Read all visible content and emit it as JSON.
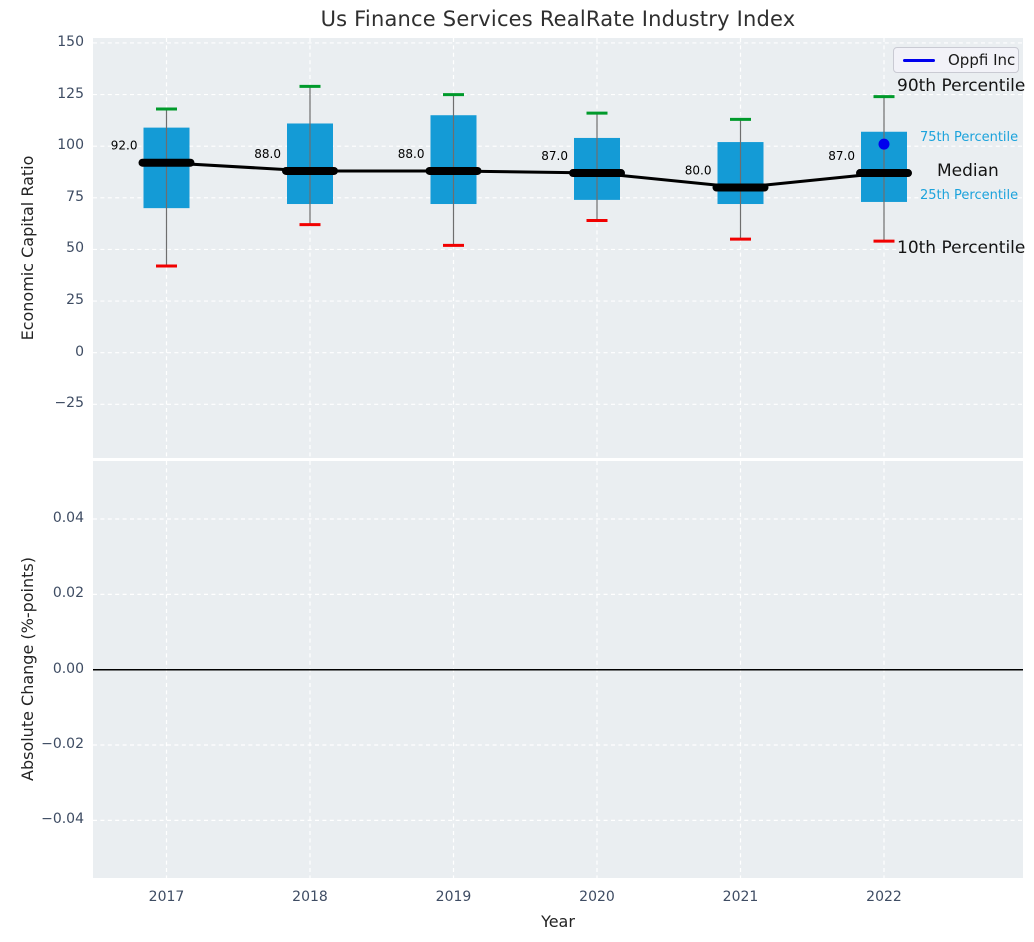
{
  "title": "Us Finance Services RealRate Industry Index",
  "legend": {
    "label": "Oppfi Inc"
  },
  "annotations": {
    "p90": "90th Percentile",
    "p75": "75th Percentile",
    "median": "Median",
    "p25": "25th Percentile",
    "p10": "10th Percentile"
  },
  "colors": {
    "panel_bg": "#eaeef1",
    "grid": "#ffffff",
    "box_fill": "#149bd6",
    "whisker": "#6e6e6e",
    "cap_top": "#009a2b",
    "cap_bottom": "#f10000",
    "median_line": "#000000",
    "oppfi_point": "#0000ee",
    "zero_line": "#000000",
    "percentile_label_blue": "#1ca3dc",
    "tick_label": "#3e4c63"
  },
  "chart_data": [
    {
      "type": "boxplot",
      "title": "Us Finance Services RealRate Industry Index",
      "xlabel": "",
      "ylabel": "Economic Capital Ratio",
      "categories": [
        "2017",
        "2018",
        "2019",
        "2020",
        "2021",
        "2022"
      ],
      "yticks": [
        150,
        125,
        100,
        75,
        50,
        25,
        0,
        -25
      ],
      "ytick_labels": [
        "150",
        "125",
        "100",
        "75",
        "50",
        "25",
        "0",
        "−25"
      ],
      "ylim": [
        -51,
        152.4
      ],
      "grid": true,
      "legend_position": "upper right",
      "boxes": [
        {
          "category": "2017",
          "p10": 42,
          "p25": 70,
          "median": 92,
          "p75": 109,
          "p90": 118,
          "median_label": "92.0"
        },
        {
          "category": "2018",
          "p10": 62,
          "p25": 72,
          "median": 88,
          "p75": 111,
          "p90": 129,
          "median_label": "88.0"
        },
        {
          "category": "2019",
          "p10": 52,
          "p25": 72,
          "median": 88,
          "p75": 115,
          "p90": 125,
          "median_label": "88.0"
        },
        {
          "category": "2020",
          "p10": 64,
          "p25": 74,
          "median": 87,
          "p75": 104,
          "p90": 116,
          "median_label": "87.0"
        },
        {
          "category": "2021",
          "p10": 55,
          "p25": 72,
          "median": 80,
          "p75": 102,
          "p90": 113,
          "median_label": "80.0"
        },
        {
          "category": "2022",
          "p10": 54,
          "p25": 73,
          "median": 87,
          "p75": 107,
          "p90": 124,
          "median_label": "87.0"
        }
      ],
      "median_trend": [
        92,
        88,
        88,
        87,
        80,
        87
      ],
      "points": [
        {
          "series": "Oppfi Inc",
          "category": "2022",
          "value": 101
        }
      ]
    },
    {
      "type": "line",
      "title": "",
      "xlabel": "Year",
      "ylabel": "Absolute Change (%-points)",
      "categories": [
        "2017",
        "2018",
        "2019",
        "2020",
        "2021",
        "2022"
      ],
      "yticks": [
        0.04,
        0.02,
        0.0,
        -0.02,
        -0.04
      ],
      "ytick_labels": [
        "0.04",
        "0.02",
        "0.00",
        "−0.02",
        "−0.04"
      ],
      "ylim": [
        -0.0553,
        0.0554
      ],
      "grid": true,
      "zero_line": 0.0,
      "series": []
    }
  ]
}
